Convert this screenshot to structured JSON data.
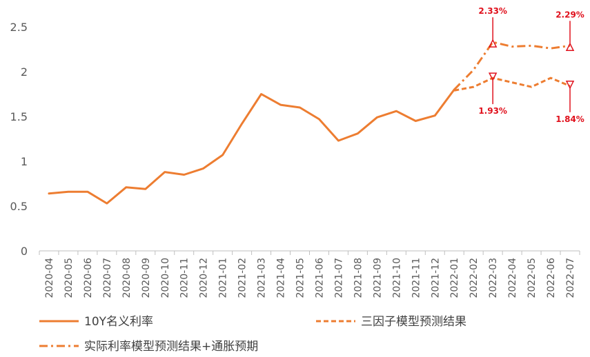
{
  "chart_data": {
    "type": "line",
    "categories": [
      "2020-04",
      "2020-05",
      "2020-06",
      "2020-07",
      "2020-08",
      "2020-09",
      "2020-10",
      "2020-11",
      "2020-12",
      "2021-01",
      "2021-02",
      "2021-03",
      "2021-04",
      "2021-05",
      "2021-06",
      "2021-07",
      "2021-08",
      "2021-09",
      "2021-10",
      "2021-11",
      "2021-12",
      "2022-01",
      "2022-02",
      "2022-03",
      "2022-04",
      "2022-05",
      "2022-06",
      "2022-07"
    ],
    "ylim": [
      0,
      2.5
    ],
    "yticks": [
      "0",
      "0.5",
      "1",
      "1.5",
      "2",
      "2.5"
    ],
    "series": [
      {
        "name": "10Y名义利率",
        "color": "#ED7D31",
        "style": "solid",
        "values": [
          0.64,
          0.66,
          0.66,
          0.53,
          0.71,
          0.69,
          0.88,
          0.85,
          0.92,
          1.07,
          1.42,
          1.75,
          1.63,
          1.6,
          1.47,
          1.23,
          1.31,
          1.49,
          1.56,
          1.45,
          1.51,
          1.8,
          null,
          null,
          null,
          null,
          null,
          null
        ]
      },
      {
        "name": "三因子模型预测结果",
        "color": "#ED7D31",
        "style": "dash",
        "values": [
          null,
          null,
          null,
          null,
          null,
          null,
          null,
          null,
          null,
          null,
          null,
          null,
          null,
          null,
          null,
          null,
          null,
          null,
          null,
          null,
          null,
          1.79,
          1.83,
          1.93,
          1.88,
          1.83,
          1.93,
          1.84
        ]
      },
      {
        "name": "实际利率模型预测结果+通胀预期",
        "color": "#ED7D31",
        "style": "dashdot",
        "values": [
          null,
          null,
          null,
          null,
          null,
          null,
          null,
          null,
          null,
          null,
          null,
          null,
          null,
          null,
          null,
          null,
          null,
          null,
          null,
          null,
          null,
          1.8,
          2.02,
          2.33,
          2.28,
          2.29,
          2.26,
          2.29
        ]
      }
    ],
    "annotations": [
      {
        "text": "2.33%",
        "category": "2022-03",
        "value": 2.33,
        "position": "above"
      },
      {
        "text": "2.29%",
        "category": "2022-07",
        "value": 2.29,
        "position": "above"
      },
      {
        "text": "1.93%",
        "category": "2022-03",
        "value": 1.93,
        "position": "below"
      },
      {
        "text": "1.84%",
        "category": "2022-07",
        "value": 1.84,
        "position": "below"
      }
    ],
    "annotation_color": "#E0101C",
    "legend_position": "bottom",
    "grid": false
  }
}
